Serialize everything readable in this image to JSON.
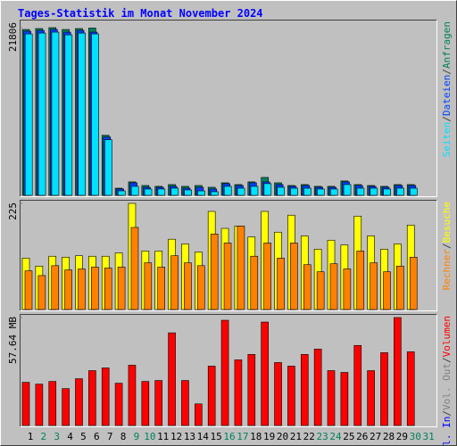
{
  "title": "Tages-Statistik im Monat November 2024",
  "legend_separator": "/",
  "chart_data": [
    {
      "type": "bar",
      "ylim": [
        0,
        21806
      ],
      "yticks": [
        21806
      ],
      "series": [
        {
          "name": "Anfragen",
          "color": "#00805c",
          "values": [
            21570,
            21690,
            21806,
            21570,
            21690,
            21750,
            7810,
            930,
            1750,
            1280,
            1170,
            1400,
            1170,
            1280,
            1050,
            1630,
            1400,
            1750,
            2330,
            1630,
            1280,
            1400,
            1170,
            1170,
            1870,
            1400,
            1280,
            1170,
            1400,
            1400,
            null
          ]
        },
        {
          "name": "Dateien",
          "color": "#0040ff",
          "values": [
            21340,
            21450,
            21570,
            21220,
            21450,
            21220,
            7580,
            820,
            1630,
            1050,
            1050,
            1170,
            930,
            1050,
            820,
            1520,
            1280,
            1630,
            1750,
            1400,
            1170,
            1280,
            1050,
            1050,
            1750,
            1280,
            1170,
            1050,
            1280,
            1280,
            null
          ]
        },
        {
          "name": "Seiten",
          "color": "#00e0ff",
          "values": [
            20990,
            21100,
            21220,
            20870,
            21100,
            20990,
            7230,
            580,
            1170,
            820,
            820,
            930,
            700,
            580,
            470,
            1170,
            930,
            1170,
            1520,
            1050,
            930,
            930,
            820,
            820,
            1400,
            930,
            930,
            820,
            930,
            930,
            null
          ]
        }
      ]
    },
    {
      "type": "bar",
      "ylim": [
        0,
        225
      ],
      "yticks": [
        225
      ],
      "series": [
        {
          "name": "Besuche",
          "color": "#ffff00",
          "values": [
            109,
            92,
            113,
            111,
            114,
            113,
            113,
            120,
            225,
            124,
            124,
            149,
            139,
            122,
            208,
            172,
            177,
            154,
            208,
            164,
            200,
            156,
            128,
            147,
            137,
            198,
            156,
            128,
            139,
            179,
            null
          ]
        },
        {
          "name": "Rechner",
          "color": "#ff8000",
          "values": [
            82,
            72,
            93,
            84,
            86,
            90,
            88,
            90,
            174,
            99,
            90,
            114,
            99,
            93,
            160,
            141,
            177,
            113,
            141,
            109,
            141,
            95,
            80,
            97,
            86,
            124,
            99,
            80,
            92,
            111,
            null
          ]
        }
      ]
    },
    {
      "type": "bar",
      "ylim": [
        0,
        57.64
      ],
      "yticks": [
        {
          "value": 57.64,
          "label": "57.64 MB"
        }
      ],
      "categories": [
        "1",
        "2",
        "3",
        "4",
        "5",
        "6",
        "7",
        "8",
        "9",
        "10",
        "11",
        "12",
        "13",
        "14",
        "15",
        "16",
        "17",
        "18",
        "19",
        "20",
        "21",
        "22",
        "23",
        "24",
        "25",
        "26",
        "27",
        "28",
        "29",
        "30",
        "31"
      ],
      "category_colors": [
        "#000000",
        "#00805c",
        "#00805c",
        "#000000",
        "#000000",
        "#000000",
        "#000000",
        "#000000",
        "#00805c",
        "#00805c",
        "#000000",
        "#000000",
        "#000000",
        "#000000",
        "#000000",
        "#00805c",
        "#00805c",
        "#000000",
        "#000000",
        "#000000",
        "#000000",
        "#000000",
        "#00805c",
        "#00805c",
        "#000000",
        "#000000",
        "#000000",
        "#000000",
        "#000000",
        "#00805c",
        "#00805c"
      ],
      "legend_extra": [
        {
          "name": "Vol. Out",
          "color": "#808080"
        },
        {
          "name": "Vol. In",
          "color": "#0000ff"
        }
      ],
      "series": [
        {
          "name": "Volumen",
          "color": "#ff0000",
          "values": [
            23.05,
            22.09,
            23.53,
            19.69,
            24.98,
            29.3,
            30.74,
            22.57,
            32.18,
            23.53,
            24.02,
            49.48,
            24.02,
            11.53,
            31.7,
            56.2,
            35.06,
            37.94,
            55.24,
            33.62,
            31.7,
            37.94,
            40.83,
            29.3,
            28.34,
            42.75,
            29.3,
            38.9,
            57.64,
            39.38,
            null
          ]
        }
      ]
    }
  ]
}
